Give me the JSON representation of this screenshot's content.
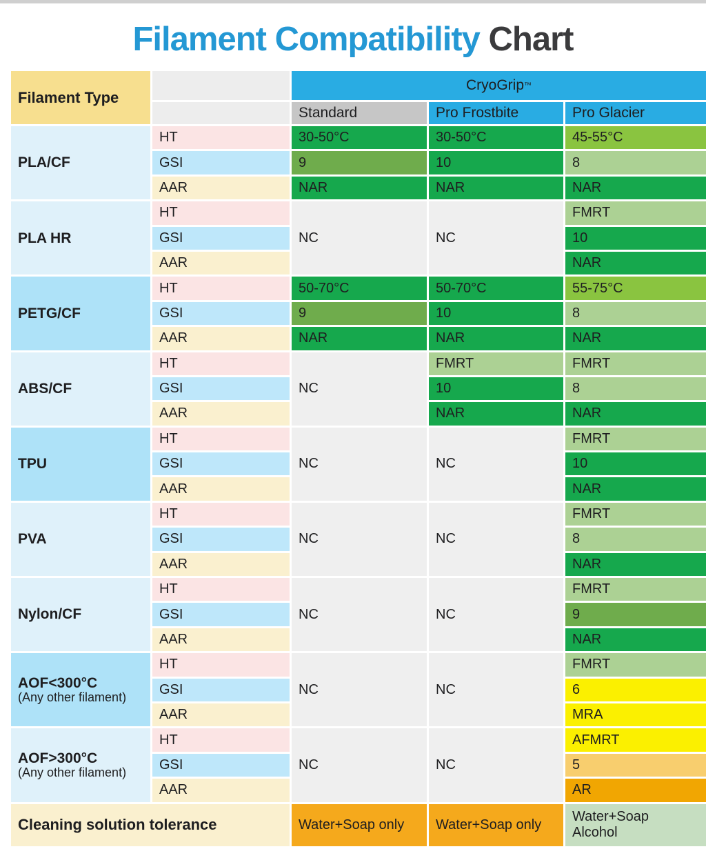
{
  "title": {
    "primary": "Filament Compatibility",
    "secondary": " Chart"
  },
  "header": {
    "filament_type_label": "Filament Type",
    "brand": "CryoGrip",
    "brand_tm": "™",
    "products": [
      "Standard",
      "Pro Frostbite",
      "Pro Glacier"
    ]
  },
  "sub_rows": [
    {
      "label": "HT",
      "color": "ht_pink"
    },
    {
      "label": "GSI",
      "color": "gsi_blue"
    },
    {
      "label": "AAR",
      "color": "aar_cream"
    }
  ],
  "groups": [
    {
      "name": "PLA/CF",
      "subtitle": null,
      "tone": "light",
      "columns": [
        {
          "merged": false,
          "rows": [
            {
              "text": "30-50°C",
              "color": "green"
            },
            {
              "text": "9",
              "color": "olive"
            },
            {
              "text": "NAR",
              "color": "green"
            }
          ]
        },
        {
          "merged": false,
          "rows": [
            {
              "text": "30-50°C",
              "color": "green"
            },
            {
              "text": "10",
              "color": "green"
            },
            {
              "text": "NAR",
              "color": "green"
            }
          ]
        },
        {
          "merged": false,
          "rows": [
            {
              "text": "45-55°C",
              "color": "lime"
            },
            {
              "text": "8",
              "color": "sage"
            },
            {
              "text": "NAR",
              "color": "green"
            }
          ]
        }
      ]
    },
    {
      "name": "PLA HR",
      "subtitle": null,
      "tone": "light",
      "columns": [
        {
          "merged": true,
          "text": "NC",
          "color": "nc"
        },
        {
          "merged": true,
          "text": "NC",
          "color": "nc"
        },
        {
          "merged": false,
          "rows": [
            {
              "text": "FMRT",
              "color": "sage"
            },
            {
              "text": "10",
              "color": "green"
            },
            {
              "text": "NAR",
              "color": "green"
            }
          ]
        }
      ]
    },
    {
      "name": "PETG/CF",
      "subtitle": null,
      "tone": "bright",
      "columns": [
        {
          "merged": false,
          "rows": [
            {
              "text": "50-70°C",
              "color": "green"
            },
            {
              "text": "9",
              "color": "olive"
            },
            {
              "text": "NAR",
              "color": "green"
            }
          ]
        },
        {
          "merged": false,
          "rows": [
            {
              "text": "50-70°C",
              "color": "green"
            },
            {
              "text": "10",
              "color": "green"
            },
            {
              "text": "NAR",
              "color": "green"
            }
          ]
        },
        {
          "merged": false,
          "rows": [
            {
              "text": "55-75°C",
              "color": "lime"
            },
            {
              "text": "8",
              "color": "sage"
            },
            {
              "text": "NAR",
              "color": "green"
            }
          ]
        }
      ]
    },
    {
      "name": "ABS/CF",
      "subtitle": null,
      "tone": "light",
      "columns": [
        {
          "merged": true,
          "text": "NC",
          "color": "nc"
        },
        {
          "merged": false,
          "rows": [
            {
              "text": "FMRT",
              "color": "sage"
            },
            {
              "text": "10",
              "color": "green"
            },
            {
              "text": "NAR",
              "color": "green"
            }
          ]
        },
        {
          "merged": false,
          "rows": [
            {
              "text": "FMRT",
              "color": "sage"
            },
            {
              "text": "8",
              "color": "sage"
            },
            {
              "text": "NAR",
              "color": "green"
            }
          ]
        }
      ]
    },
    {
      "name": "TPU",
      "subtitle": null,
      "tone": "bright",
      "columns": [
        {
          "merged": true,
          "text": "NC",
          "color": "nc"
        },
        {
          "merged": true,
          "text": "NC",
          "color": "nc"
        },
        {
          "merged": false,
          "rows": [
            {
              "text": "FMRT",
              "color": "sage"
            },
            {
              "text": "10",
              "color": "green"
            },
            {
              "text": "NAR",
              "color": "green"
            }
          ]
        }
      ]
    },
    {
      "name": "PVA",
      "subtitle": null,
      "tone": "light",
      "columns": [
        {
          "merged": true,
          "text": "NC",
          "color": "nc"
        },
        {
          "merged": true,
          "text": "NC",
          "color": "nc"
        },
        {
          "merged": false,
          "rows": [
            {
              "text": "FMRT",
              "color": "sage"
            },
            {
              "text": "8",
              "color": "sage"
            },
            {
              "text": "NAR",
              "color": "green"
            }
          ]
        }
      ]
    },
    {
      "name": "Nylon/CF",
      "subtitle": null,
      "tone": "light",
      "columns": [
        {
          "merged": true,
          "text": "NC",
          "color": "nc"
        },
        {
          "merged": true,
          "text": "NC",
          "color": "nc"
        },
        {
          "merged": false,
          "rows": [
            {
              "text": "FMRT",
              "color": "sage"
            },
            {
              "text": "9",
              "color": "olive"
            },
            {
              "text": "NAR",
              "color": "green"
            }
          ]
        }
      ]
    },
    {
      "name": "AOF<300°C",
      "subtitle": "(Any other filament)",
      "tone": "bright",
      "columns": [
        {
          "merged": true,
          "text": "NC",
          "color": "nc"
        },
        {
          "merged": true,
          "text": "NC",
          "color": "nc"
        },
        {
          "merged": false,
          "rows": [
            {
              "text": "FMRT",
              "color": "sage"
            },
            {
              "text": "6",
              "color": "yellow"
            },
            {
              "text": "MRA",
              "color": "yellow"
            }
          ]
        }
      ]
    },
    {
      "name": "AOF>300°C",
      "subtitle": "(Any other filament)",
      "tone": "light",
      "columns": [
        {
          "merged": true,
          "text": "NC",
          "color": "nc"
        },
        {
          "merged": true,
          "text": "NC",
          "color": "nc"
        },
        {
          "merged": false,
          "rows": [
            {
              "text": "AFMRT",
              "color": "yellow"
            },
            {
              "text": "5",
              "color": "amber"
            },
            {
              "text": "AR",
              "color": "orange"
            }
          ]
        }
      ]
    }
  ],
  "footer": {
    "label": "Cleaning solution tolerance",
    "cells": [
      {
        "text": "Water+Soap only",
        "color": "foot_orange"
      },
      {
        "text": "Water+Soap only",
        "color": "foot_orange"
      },
      {
        "text": "Water+Soap Alcohol",
        "color": "foot_green"
      }
    ]
  },
  "colors": {
    "title_blue": "#2498D4",
    "title_dark": "#3B3B3D",
    "top_strip": "#CFCFCF",
    "head_yellow": "#F7DF8F",
    "head_gray": "#EDEDED",
    "brand_blue": "#29ACE3",
    "standard_gray": "#C6C6C6",
    "filament_light": "#DFF1FA",
    "filament_bright": "#AEE2F8",
    "ht_pink": "#FBE4E4",
    "gsi_blue": "#BEE7FA",
    "aar_cream": "#FAF0CF",
    "nc": "#EFEFEF",
    "green": "#16A84D",
    "olive": "#6FAC4C",
    "lime": "#8AC440",
    "sage": "#ACD194",
    "yellow": "#FBF000",
    "amber": "#F8CE6E",
    "orange": "#F1A602",
    "foot_orange": "#F5A91C",
    "foot_green": "#C6DEC1"
  },
  "chart_data": {
    "type": "table",
    "title": "Filament Compatibility Chart",
    "column_headers": [
      "Filament Type",
      "",
      "CryoGrip™ Standard",
      "CryoGrip™ Pro Frostbite",
      "CryoGrip™ Pro Glacier"
    ],
    "rows": [
      [
        "PLA/CF",
        "HT",
        "30-50°C",
        "30-50°C",
        "45-55°C"
      ],
      [
        "PLA/CF",
        "GSI",
        "9",
        "10",
        "8"
      ],
      [
        "PLA/CF",
        "AAR",
        "NAR",
        "NAR",
        "NAR"
      ],
      [
        "PLA HR",
        "HT",
        "NC",
        "NC",
        "FMRT"
      ],
      [
        "PLA HR",
        "GSI",
        "NC",
        "NC",
        "10"
      ],
      [
        "PLA HR",
        "AAR",
        "NC",
        "NC",
        "NAR"
      ],
      [
        "PETG/CF",
        "HT",
        "50-70°C",
        "50-70°C",
        "55-75°C"
      ],
      [
        "PETG/CF",
        "GSI",
        "9",
        "10",
        "8"
      ],
      [
        "PETG/CF",
        "AAR",
        "NAR",
        "NAR",
        "NAR"
      ],
      [
        "ABS/CF",
        "HT",
        "NC",
        "FMRT",
        "FMRT"
      ],
      [
        "ABS/CF",
        "GSI",
        "NC",
        "10",
        "8"
      ],
      [
        "ABS/CF",
        "AAR",
        "NC",
        "NAR",
        "NAR"
      ],
      [
        "TPU",
        "HT",
        "NC",
        "NC",
        "FMRT"
      ],
      [
        "TPU",
        "GSI",
        "NC",
        "NC",
        "10"
      ],
      [
        "TPU",
        "AAR",
        "NC",
        "NC",
        "NAR"
      ],
      [
        "PVA",
        "HT",
        "NC",
        "NC",
        "FMRT"
      ],
      [
        "PVA",
        "GSI",
        "NC",
        "NC",
        "8"
      ],
      [
        "PVA",
        "AAR",
        "NC",
        "NC",
        "NAR"
      ],
      [
        "Nylon/CF",
        "HT",
        "NC",
        "NC",
        "FMRT"
      ],
      [
        "Nylon/CF",
        "GSI",
        "NC",
        "NC",
        "9"
      ],
      [
        "Nylon/CF",
        "AAR",
        "NC",
        "NC",
        "NAR"
      ],
      [
        "AOF<300°C (Any other filament)",
        "HT",
        "NC",
        "NC",
        "FMRT"
      ],
      [
        "AOF<300°C (Any other filament)",
        "GSI",
        "NC",
        "NC",
        "6"
      ],
      [
        "AOF<300°C (Any other filament)",
        "AAR",
        "NC",
        "NC",
        "MRA"
      ],
      [
        "AOF>300°C (Any other filament)",
        "HT",
        "NC",
        "NC",
        "AFMRT"
      ],
      [
        "AOF>300°C (Any other filament)",
        "GSI",
        "NC",
        "NC",
        "5"
      ],
      [
        "AOF>300°C (Any other filament)",
        "AAR",
        "NC",
        "NC",
        "AR"
      ],
      [
        "Cleaning solution tolerance",
        "",
        "Water+Soap only",
        "Water+Soap only",
        "Water+Soap Alcohol"
      ]
    ]
  }
}
